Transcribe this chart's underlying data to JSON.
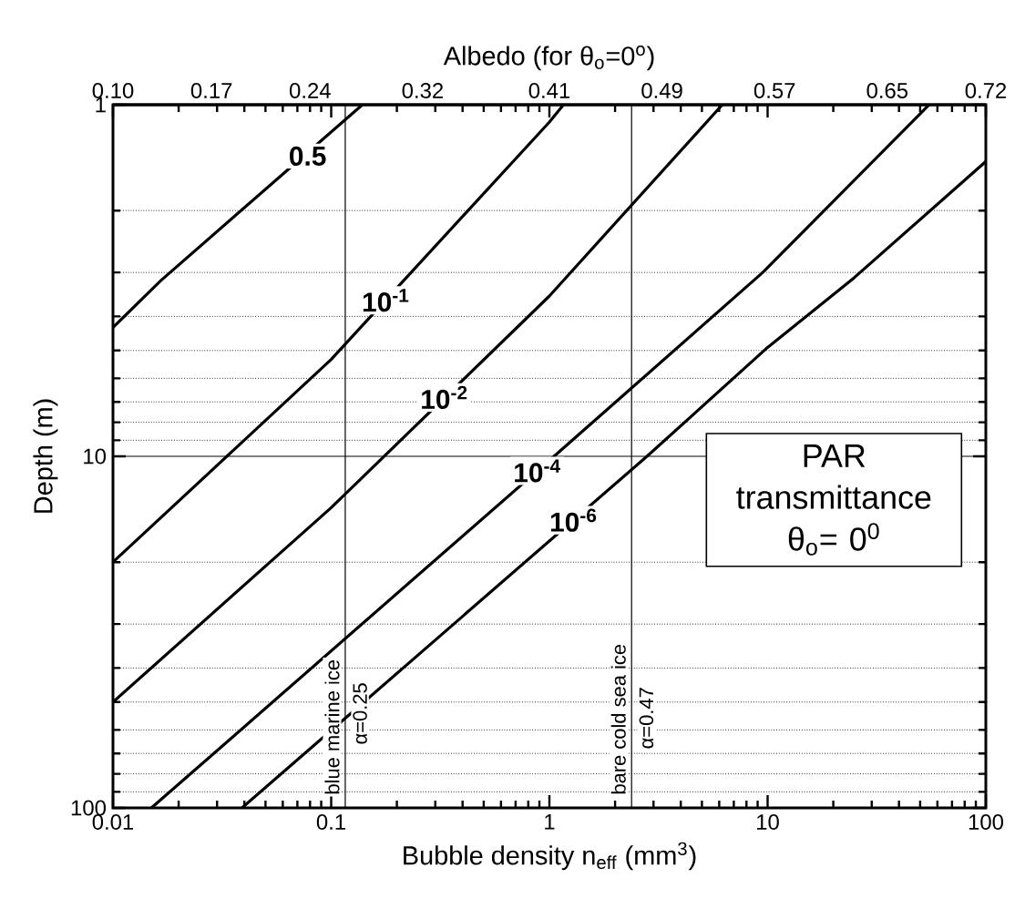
{
  "chart_data": {
    "type": "line",
    "xlabel": "Bubble density n$_{eff}$  (mm$^{3}$)",
    "ylabel": "Depth (m)",
    "x2label": "Albedo (for θ$_{o}$=0$^{o}$)",
    "log": "xy",
    "grid": "y",
    "xlim": [
      0.01,
      100
    ],
    "xticks": [
      0.01,
      0.1,
      1,
      10,
      100
    ],
    "ylim": [
      100,
      1
    ],
    "yticks": [
      1,
      10,
      100
    ],
    "x2lim": [
      0.1,
      0.72
    ],
    "x2ticks": [
      {
        "value": 0.1,
        "label": "0.10"
      },
      0.17,
      0.24,
      0.32,
      0.41,
      0.49,
      0.57,
      0.65,
      0.72
    ],
    "series": [
      {
        "color": "#000000",
        "x": [
          0.01,
          0.0166,
          0.139
        ],
        "values": [
          4.3,
          3.16,
          1
        ]
      },
      {
        "color": "#000000",
        "x": [
          0.01,
          0.1,
          1.0,
          1.16
        ],
        "values": [
          20,
          5.3,
          1.12,
          1
        ]
      },
      {
        "color": "#000000",
        "x": [
          0.01,
          0.1,
          1.0,
          6.2
        ],
        "values": [
          50,
          14,
          3.5,
          1
        ]
      },
      {
        "color": "#000000",
        "x": [
          0.015,
          1.05,
          9.5,
          55
        ],
        "values": [
          100,
          10,
          3.0,
          1
        ]
      },
      {
        "color": "#000000",
        "x": [
          0.039,
          2.8,
          10,
          25,
          100
        ],
        "values": [
          100,
          10,
          4.9,
          3.1,
          1.45
        ]
      }
    ],
    "ref_lines": [
      {
        "axis": "x",
        "value": 0.116,
        "label": "blue marine ice"
      },
      {
        "axis": "x",
        "value": 2.38,
        "label": "bare cold sea ice"
      }
    ],
    "annotations": [
      {
        "text": "0.5",
        "x": 0.078,
        "y": 1.4
      },
      {
        "text": "10$^{-1}$",
        "x": 0.178,
        "y": 3.6
      },
      {
        "text": "10$^{-2}$",
        "x": 0.33,
        "y": 6.8
      },
      {
        "text": "10$^{-4}$",
        "x": 0.88,
        "y": 11
      },
      {
        "text": "10$^{-6}$",
        "x": 1.29,
        "y": 15.2
      },
      {
        "text": "α=0.25",
        "x": 0.116,
        "y": 67
      },
      {
        "text": "α=0.47",
        "x": 2.38,
        "y": 69
      },
      "PAR transmittance θ$_{o}$= 0$^{0}$"
    ]
  }
}
